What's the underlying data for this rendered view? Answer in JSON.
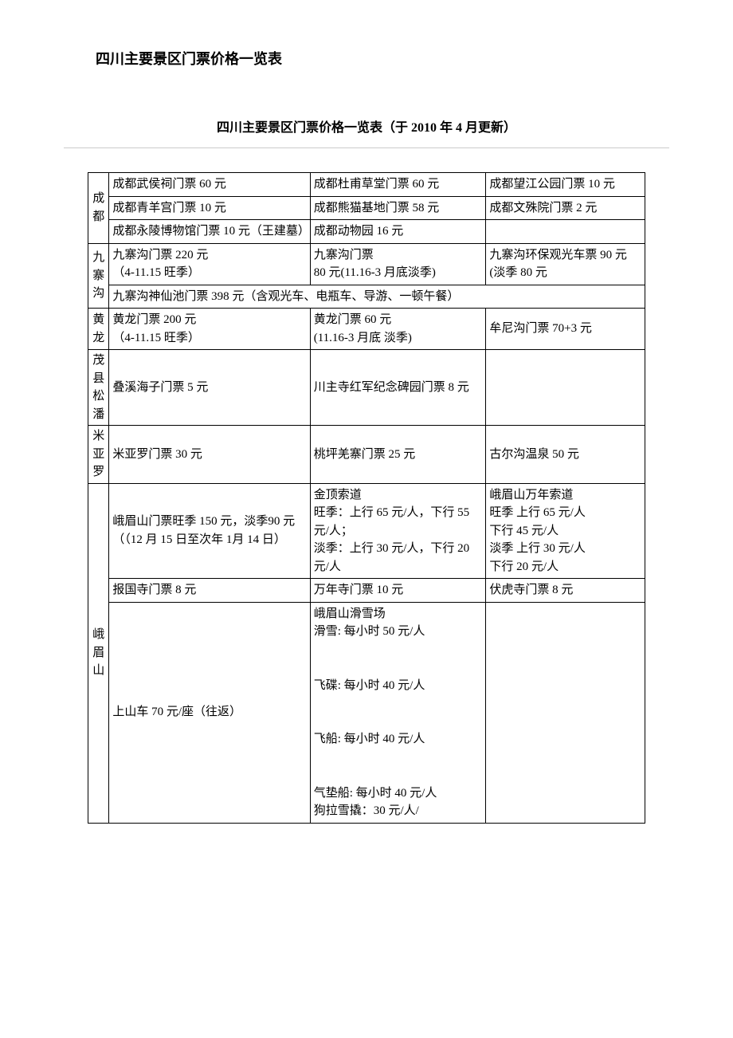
{
  "title": "四川主要景区门票价格一览表",
  "subtitle": "四川主要景区门票价格一览表（于 2010 年 4 月更新）",
  "regions": {
    "chengdu": {
      "name": "成都",
      "r1c1": "成都武侯祠门票 60 元",
      "r1c2": "成都杜甫草堂门票 60 元",
      "r1c3": "成都望江公园门票 10 元",
      "r2c1": "成都青羊宫门票 10 元",
      "r2c2": "成都熊猫基地门票 58 元",
      "r2c3": "成都文殊院门票 2 元",
      "r3c1": "成都永陵博物馆门票 10 元（王建墓）",
      "r3c2": "成都动物园 16 元",
      "r3c3": ""
    },
    "jiuzhaigou": {
      "name": "九寨沟",
      "r1c1": "九寨沟门票 220 元\n（4-11.15 旺季）",
      "r1c2": "九寨沟门票\n80 元(11.16-3 月底淡季)",
      "r1c3": "九寨沟环保观光车票 90 元(淡季 80 元",
      "r2full": "九寨沟神仙池门票 398 元（含观光车、电瓶车、导游、一顿午餐）"
    },
    "huanglong": {
      "name": "黄龙",
      "r1c1": "黄龙门票 200 元\n（4-11.15 旺季）",
      "r1c2": "黄龙门票 60 元\n(11.16-3 月底 淡季)",
      "r1c3": "牟尼沟门票 70+3 元"
    },
    "maoxian": {
      "name": "茂县松潘",
      "r1c1": "叠溪海子门票 5 元",
      "r1c2": "川主寺红军纪念碑园门票 8 元",
      "r1c3": ""
    },
    "miyaluo": {
      "name": "米亚罗",
      "r1c1": "米亚罗门票 30 元",
      "r1c2": "桃坪羌寨门票 25 元",
      "r1c3": "古尔沟温泉 50 元"
    },
    "emeishan": {
      "name": "峨眉山",
      "r1c1": "峨眉山门票旺季 150 元，淡季90 元（（12 月 15 日至次年 1月 14 日）",
      "r1c2": "金顶索道\n旺季：上行 65 元/人，下行 55 元/人；\n淡季：上行 30 元/人，下行 20 元/人",
      "r1c3": "峨眉山万年索道\n旺季 上行 65 元/人\n下行 45 元/人\n淡季 上行 30 元/人\n下行 20 元/人",
      "r2c1": "报国寺门票 8 元",
      "r2c2": "万年寺门票 10 元",
      "r2c3": "伏虎寺门票 8 元",
      "r3c1": "上山车 70 元/座（往返）",
      "r3c2": "峨眉山滑雪场\n滑雪: 每小时 50 元/人\n\n飞碟: 每小时 40 元/人\n\n飞船: 每小时 40 元/人\n\n气垫船: 每小时 40 元/人\n狗拉雪撬：30 元/人/",
      "r3c3": ""
    }
  }
}
